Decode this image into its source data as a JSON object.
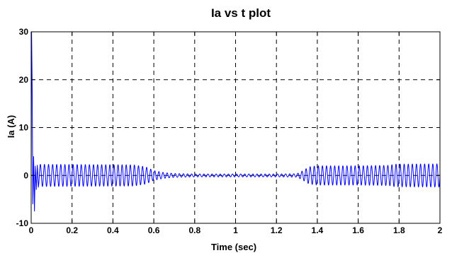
{
  "chart_data": {
    "type": "line",
    "title": "Ia vs t plot",
    "xlabel": "Time (sec)",
    "ylabel": "Ia (A)",
    "xlim": [
      0,
      2
    ],
    "ylim": [
      -10,
      30
    ],
    "xticks": [
      0,
      0.2,
      0.4,
      0.6,
      0.8,
      1,
      1.2,
      1.4,
      1.6,
      1.8,
      2
    ],
    "yticks": [
      -10,
      0,
      10,
      20,
      30
    ],
    "xtick_labels": [
      "0",
      "0.2",
      "0.4",
      "0.6",
      "0.8",
      "1",
      "1.2",
      "1.4",
      "1.6",
      "1.8",
      "2"
    ],
    "ytick_labels": [
      "-10",
      "0",
      "10",
      "20",
      "30"
    ],
    "grid": true,
    "series": [
      {
        "color": "#0000ff",
        "oscillation_hz": 50,
        "startup_transient": [
          [
            0,
            0
          ],
          [
            0.002,
            30
          ],
          [
            0.005,
            18
          ],
          [
            0.008,
            -6
          ],
          [
            0.012,
            4
          ],
          [
            0.016,
            -7.5
          ],
          [
            0.02,
            2
          ],
          [
            0.025,
            -3
          ],
          [
            0.03,
            2.2
          ],
          [
            0.035,
            -2.5
          ]
        ],
        "amplitude_envelope": [
          [
            0.035,
            2.3
          ],
          [
            0.5,
            2.2
          ],
          [
            0.56,
            1.8
          ],
          [
            0.6,
            1.0
          ],
          [
            0.65,
            0.6
          ],
          [
            0.7,
            0.4
          ],
          [
            0.8,
            0.3
          ],
          [
            1.0,
            0.3
          ],
          [
            1.2,
            0.3
          ],
          [
            1.3,
            0.35
          ],
          [
            1.33,
            1.0
          ],
          [
            1.36,
            1.8
          ],
          [
            1.4,
            2.0
          ],
          [
            1.6,
            2.0
          ],
          [
            1.75,
            2.1
          ],
          [
            1.78,
            2.35
          ],
          [
            2.0,
            2.4
          ]
        ]
      }
    ]
  }
}
